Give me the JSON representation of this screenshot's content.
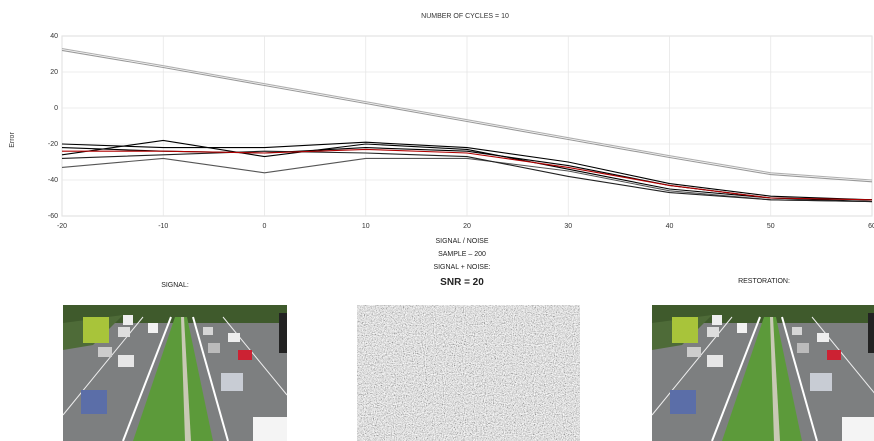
{
  "chart_data": {
    "type": "line",
    "title": "NUMBER OF CYCLES = 10",
    "y_label": "Error",
    "x": [
      -20,
      -10,
      0,
      10,
      20,
      30,
      40,
      50,
      60
    ],
    "series": [
      {
        "color": "#9a9a9a",
        "values": [
          32,
          22.5,
          12.5,
          2.5,
          -7.5,
          -17.5,
          -27.5,
          -37,
          -41
        ]
      },
      {
        "color": "#b0b0b0",
        "values": [
          33,
          23.5,
          13.5,
          3.5,
          -6.5,
          -16.5,
          -26.5,
          -36,
          -40
        ]
      },
      {
        "color": "#000000",
        "values": [
          -22,
          -24,
          -25,
          -22,
          -24,
          -32,
          -43,
          -50,
          -51
        ]
      },
      {
        "color": "#000000",
        "values": [
          -26,
          -18,
          -27,
          -20,
          -23,
          -34,
          -45,
          -50,
          -52
        ]
      },
      {
        "color": "#555555",
        "values": [
          -33,
          -28,
          -36,
          -28,
          -28,
          -35,
          -46,
          -51,
          -52
        ]
      },
      {
        "color": "#000000",
        "values": [
          -20,
          -22,
          -22,
          -19,
          -22,
          -30,
          -42,
          -49,
          -51
        ]
      },
      {
        "color": "#222222",
        "values": [
          -28,
          -26,
          -24,
          -25,
          -27,
          -38,
          -47,
          -51,
          -52
        ]
      },
      {
        "color": "#b00000",
        "values": [
          -24,
          -24,
          -25,
          -23,
          -25,
          -33,
          -43,
          -50,
          -51
        ]
      }
    ],
    "xlim": [
      -20,
      60
    ],
    "ylim": [
      -60,
      40
    ],
    "xticks": [
      -20,
      -10,
      0,
      10,
      20,
      30,
      40,
      50,
      60
    ],
    "yticks": [
      -60,
      -40,
      -20,
      0,
      20,
      40
    ],
    "grid": true
  },
  "labels": {
    "signal_noise": "SIGNAL / NOISE",
    "sample": "SAMPLE – 200",
    "signal_plus_noise": "SIGNAL + NOISE:",
    "snr": "SNR = 20",
    "signal": "SIGNAL:",
    "restoration": "RESTORATION:"
  }
}
